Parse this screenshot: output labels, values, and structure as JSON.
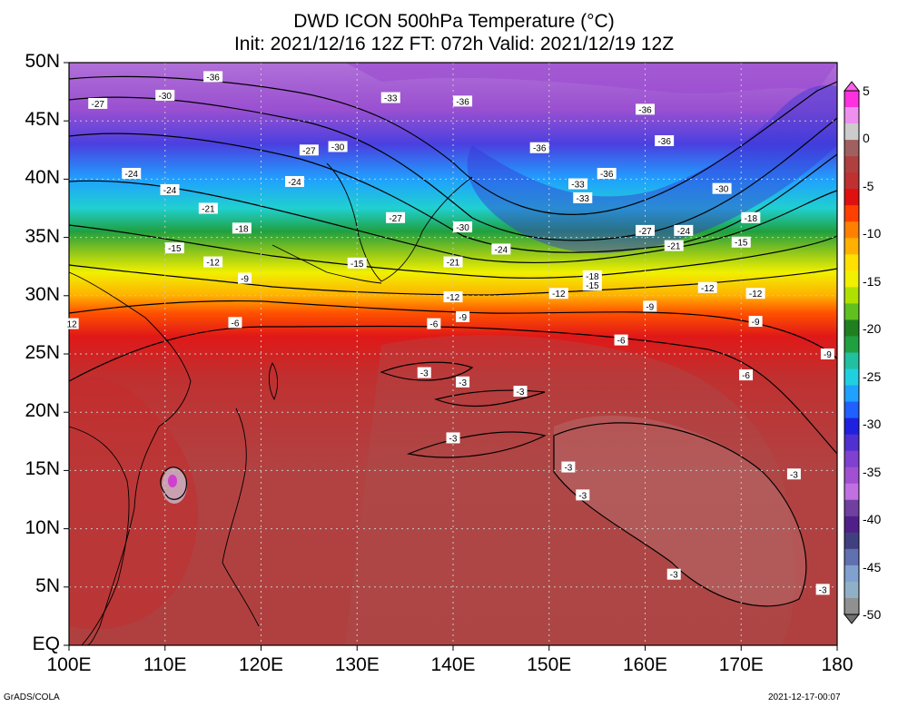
{
  "title_line1": "DWD ICON 500hPa Temperature (°C)",
  "title_line2": "Init: 2021/12/16 12Z  FT: 072h  Valid: 2021/12/19 12Z",
  "lat_labels": [
    "50N",
    "45N",
    "40N",
    "35N",
    "30N",
    "25N",
    "20N",
    "15N",
    "10N",
    "5N",
    "EQ"
  ],
  "lon_labels": [
    "100E",
    "110E",
    "120E",
    "130E",
    "140E",
    "150E",
    "160E",
    "170E",
    "180"
  ],
  "colorbar": {
    "labels": [
      "5",
      "0",
      "-5",
      "-10",
      "-15",
      "-20",
      "-25",
      "-30",
      "-35",
      "-40",
      "-45",
      "-50"
    ],
    "colors": [
      "#ff30e0",
      "#ee90ee",
      "#cccccc",
      "#a06060",
      "#b04040",
      "#c03030",
      "#e01010",
      "#ff4000",
      "#ff8000",
      "#ffb000",
      "#ffe000",
      "#f0f000",
      "#b0e000",
      "#60c020",
      "#208020",
      "#20a040",
      "#20c0a0",
      "#20d0e0",
      "#20a0ff",
      "#2060ff",
      "#2020e0",
      "#5030d0",
      "#8040d0",
      "#a050d0",
      "#c070e0",
      "#7040a0",
      "#50208a",
      "#404080",
      "#6070b0",
      "#80a0d0",
      "#90b0c8",
      "#909090"
    ]
  },
  "contour_labels": [
    {
      "text": "-36",
      "lon": 115,
      "lat": 48.8
    },
    {
      "text": "-27",
      "lon": 103,
      "lat": 46.5
    },
    {
      "text": "-30",
      "lon": 110,
      "lat": 47.2
    },
    {
      "text": "-33",
      "lon": 133.5,
      "lat": 47
    },
    {
      "text": "-36",
      "lon": 141,
      "lat": 46.7
    },
    {
      "text": "-36",
      "lon": 160,
      "lat": 46
    },
    {
      "text": "-27",
      "lon": 125,
      "lat": 42.5
    },
    {
      "text": "-30",
      "lon": 128,
      "lat": 42.8
    },
    {
      "text": "-36",
      "lon": 149,
      "lat": 42.7
    },
    {
      "text": "-36",
      "lon": 162,
      "lat": 43.3
    },
    {
      "text": "-24",
      "lon": 106.5,
      "lat": 40.5
    },
    {
      "text": "-24",
      "lon": 123.5,
      "lat": 39.8
    },
    {
      "text": "-24",
      "lon": 110.5,
      "lat": 39.1
    },
    {
      "text": "-36",
      "lon": 156,
      "lat": 40.5
    },
    {
      "text": "-33",
      "lon": 153,
      "lat": 39.6
    },
    {
      "text": "-30",
      "lon": 168,
      "lat": 39.2
    },
    {
      "text": "-33",
      "lon": 153.5,
      "lat": 38.4
    },
    {
      "text": "-21",
      "lon": 114.5,
      "lat": 37.5
    },
    {
      "text": "-18",
      "lon": 118,
      "lat": 35.8
    },
    {
      "text": "-27",
      "lon": 134,
      "lat": 36.7
    },
    {
      "text": "-30",
      "lon": 141,
      "lat": 35.9
    },
    {
      "text": "-27",
      "lon": 160,
      "lat": 35.6
    },
    {
      "text": "-24",
      "lon": 164,
      "lat": 35.6
    },
    {
      "text": "-18",
      "lon": 171,
      "lat": 36.7
    },
    {
      "text": "-15",
      "lon": 111,
      "lat": 34.1
    },
    {
      "text": "-24",
      "lon": 145,
      "lat": 34.0
    },
    {
      "text": "-21",
      "lon": 163,
      "lat": 34.3
    },
    {
      "text": "-15",
      "lon": 170,
      "lat": 34.6
    },
    {
      "text": "-12",
      "lon": 115,
      "lat": 32.9
    },
    {
      "text": "-15",
      "lon": 130,
      "lat": 32.8
    },
    {
      "text": "-21",
      "lon": 140,
      "lat": 32.9
    },
    {
      "text": "-18",
      "lon": 154.5,
      "lat": 31.7
    },
    {
      "text": "-15",
      "lon": 154.5,
      "lat": 30.9
    },
    {
      "text": "-9",
      "lon": 118.3,
      "lat": 31.5
    },
    {
      "text": "-12",
      "lon": 166.5,
      "lat": 30.7
    },
    {
      "text": "-12",
      "lon": 171.5,
      "lat": 30.2
    },
    {
      "text": "-12",
      "lon": 140,
      "lat": 29.9
    },
    {
      "text": "-12",
      "lon": 151,
      "lat": 30.2
    },
    {
      "text": "-9",
      "lon": 160.5,
      "lat": 29.1
    },
    {
      "text": "-9",
      "lon": 171.5,
      "lat": 27.8
    },
    {
      "text": "12",
      "lon": 100.3,
      "lat": 27.6
    },
    {
      "text": "-6",
      "lon": 117.3,
      "lat": 27.7
    },
    {
      "text": "-9",
      "lon": 141,
      "lat": 28.2
    },
    {
      "text": "-6",
      "lon": 138,
      "lat": 27.6
    },
    {
      "text": "-6",
      "lon": 157.5,
      "lat": 26.2
    },
    {
      "text": "-9",
      "lon": 179,
      "lat": 25
    },
    {
      "text": "-3",
      "lon": 137,
      "lat": 23.4
    },
    {
      "text": "-6",
      "lon": 170.5,
      "lat": 23.2
    },
    {
      "text": "-3",
      "lon": 141,
      "lat": 22.6
    },
    {
      "text": "-3",
      "lon": 147,
      "lat": 21.8
    },
    {
      "text": "-3",
      "lon": 140,
      "lat": 17.8
    },
    {
      "text": "-3",
      "lon": 152,
      "lat": 15.3
    },
    {
      "text": "-3",
      "lon": 175.5,
      "lat": 14.7
    },
    {
      "text": "-3",
      "lon": 153.5,
      "lat": 12.9
    },
    {
      "text": "-3",
      "lon": 163,
      "lat": 6.1
    },
    {
      "text": "-3",
      "lon": 178.5,
      "lat": 4.8
    }
  ],
  "footer_left": "GrADS/COLA",
  "footer_right": "2021-12-17-00:07"
}
